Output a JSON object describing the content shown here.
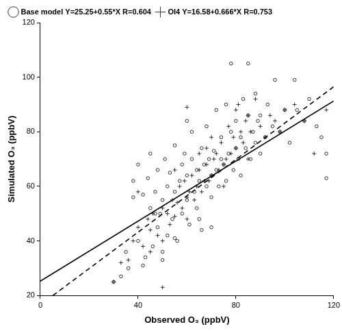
{
  "chart_data": {
    "type": "scatter",
    "x_label": "Observed O₃ (ppbV)",
    "y_label": "Simulated O₃ (ppbV)",
    "xlim": [
      0,
      120
    ],
    "xticks": [
      0,
      40,
      80,
      120
    ],
    "ylim": [
      20,
      120
    ],
    "yticks": [
      20,
      40,
      60,
      80,
      100,
      120
    ],
    "grid": false,
    "legend": "top-left",
    "series": [
      {
        "name": "Base model Y=25.25+0.55*X R=0.604",
        "color": "#000000",
        "marker": "circle",
        "x": [
          30,
          33,
          35,
          36,
          38,
          40,
          40,
          42,
          43,
          44,
          45,
          46,
          47,
          48,
          48,
          49,
          50,
          50,
          51,
          52,
          52,
          53,
          54,
          55,
          55,
          56,
          57,
          58,
          58,
          59,
          60,
          60,
          61,
          62,
          62,
          63,
          64,
          64,
          65,
          66,
          66,
          67,
          68,
          68,
          69,
          70,
          70,
          71,
          72,
          72,
          73,
          74,
          74,
          75,
          76,
          76,
          77,
          78,
          78,
          79,
          80,
          80,
          81,
          82,
          82,
          83,
          84,
          85,
          85,
          86,
          87,
          88,
          88,
          89,
          90,
          90,
          92,
          93,
          95,
          96,
          98,
          100,
          102,
          104,
          105,
          108,
          110,
          113,
          115,
          117,
          117,
          45,
          50,
          55,
          60,
          65,
          70,
          38,
          42,
          47
        ],
        "values": [
          25,
          27,
          36,
          30,
          62,
          68,
          40,
          57,
          34,
          63,
          72,
          38,
          58,
          45,
          66,
          50,
          55,
          36,
          70,
          60,
          42,
          65,
          48,
          75,
          58,
          40,
          62,
          68,
          50,
          72,
          55,
          64,
          46,
          70,
          80,
          58,
          66,
          52,
          62,
          74,
          44,
          68,
          60,
          82,
          70,
          64,
          56,
          73,
          66,
          88,
          60,
          78,
          70,
          68,
          90,
          62,
          72,
          80,
          105,
          66,
          84,
          74,
          70,
          78,
          64,
          92,
          74,
          86,
          105,
          70,
          80,
          76,
          94,
          84,
          72,
          86,
          78,
          90,
          82,
          99,
          80,
          88,
          76,
          99,
          88,
          84,
          92,
          82,
          78,
          63,
          72,
          52,
          33,
          41,
          84,
          48,
          45,
          56,
          31,
          50
        ]
      },
      {
        "name": "OI4 Y=16.58+0.666*X R=0.753",
        "color": "#000000",
        "marker": "plus",
        "x": [
          30,
          33,
          36,
          38,
          40,
          42,
          44,
          45,
          46,
          48,
          50,
          50,
          52,
          53,
          54,
          55,
          56,
          57,
          58,
          59,
          60,
          60,
          61,
          62,
          63,
          64,
          65,
          66,
          67,
          68,
          68,
          69,
          70,
          71,
          72,
          73,
          74,
          75,
          76,
          77,
          78,
          79,
          80,
          81,
          82,
          83,
          84,
          85,
          86,
          88,
          90,
          92,
          94,
          96,
          98,
          100,
          104,
          108,
          112,
          117,
          40,
          45,
          50,
          55,
          60,
          65,
          70,
          75,
          80,
          85
        ],
        "values": [
          25,
          32,
          33,
          40,
          45,
          38,
          48,
          44,
          50,
          42,
          23,
          52,
          50,
          46,
          55,
          49,
          54,
          60,
          52,
          62,
          89,
          56,
          58,
          64,
          55,
          60,
          66,
          58,
          62,
          68,
          74,
          62,
          64,
          70,
          72,
          66,
          76,
          68,
          70,
          82,
          72,
          78,
          74,
          90,
          80,
          76,
          84,
          86,
          80,
          92,
          82,
          78,
          86,
          84,
          80,
          88,
          90,
          84,
          72,
          88,
          58,
          36,
          40,
          66,
          48,
          72,
          78,
          60,
          88,
          70
        ]
      },
      {
        "type": "line",
        "color": "#000000",
        "line_style": "solid",
        "x": [
          0,
          120
        ],
        "values": [
          25.25,
          91.25
        ]
      },
      {
        "type": "line",
        "color": "#000000",
        "line_style": "dashed",
        "x": [
          5.14,
          120
        ],
        "values": [
          20,
          96.5
        ]
      }
    ]
  }
}
